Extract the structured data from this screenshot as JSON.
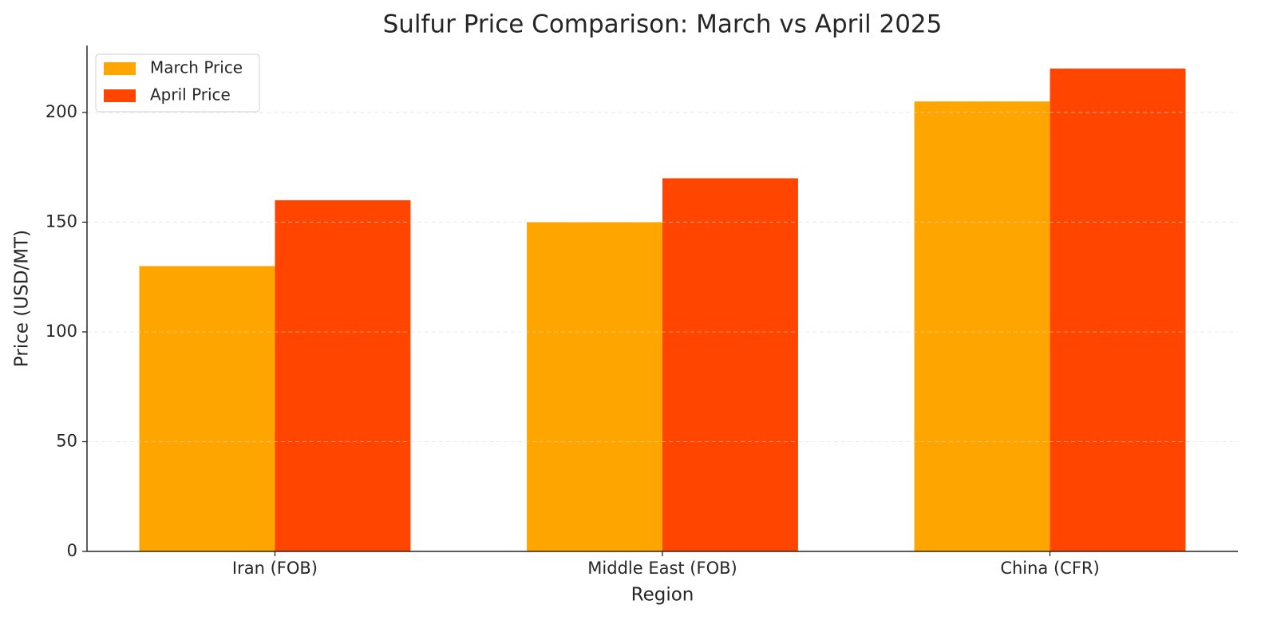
{
  "chart_data": {
    "type": "bar",
    "title": "Sulfur Price Comparison: March vs April 2025",
    "x_label": "Region",
    "y_label": "Price (USD/MT)",
    "categories": [
      "Iran (FOB)",
      "Middle East (FOB)",
      "China (CFR)"
    ],
    "series": [
      {
        "name": "March Price",
        "color": "#ffa500",
        "values": [
          130,
          150,
          205
        ]
      },
      {
        "name": "April Price",
        "color": "#ff4500",
        "values": [
          160,
          170,
          220
        ]
      }
    ],
    "ylim": [
      0,
      230.5
    ],
    "yticks": [
      0,
      50,
      100,
      150,
      200
    ],
    "grid": true,
    "legend": "upper left"
  }
}
